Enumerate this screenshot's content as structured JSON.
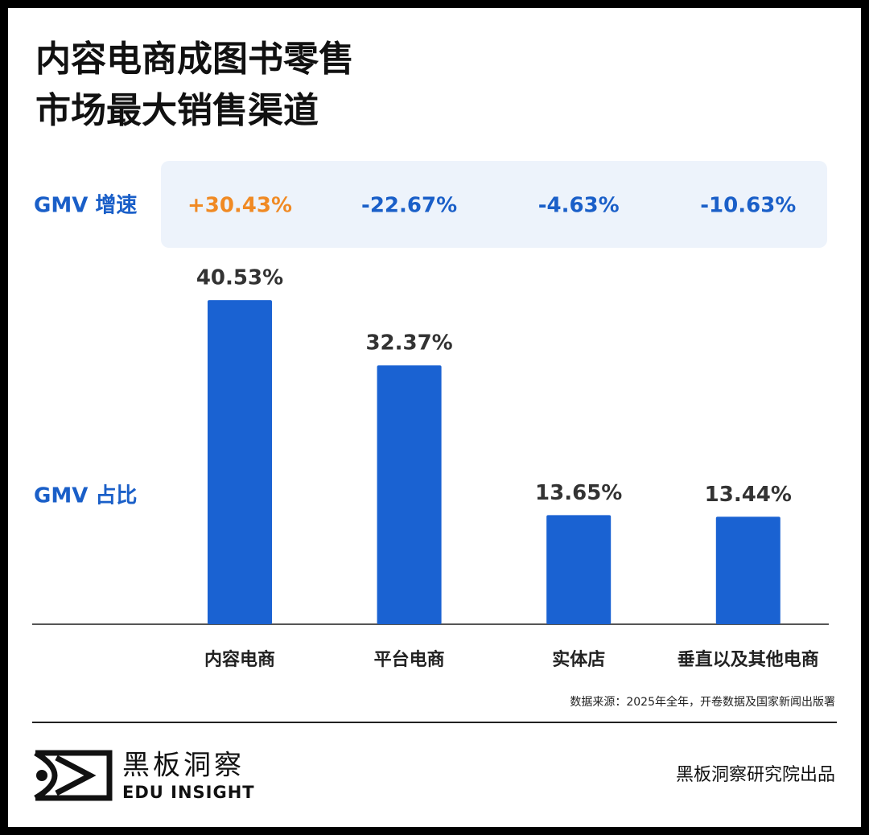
{
  "chart_data": {
    "type": "bar",
    "title": [
      "内容电商成图书零售",
      "市场最大销售渠道"
    ],
    "categories": [
      "内容电商",
      "平台电商",
      "实体店",
      "垂直以及其他电商"
    ],
    "series": [
      {
        "name": "GMV 占比",
        "color": "#1a62d2",
        "values": [
          40.53,
          32.37,
          13.65,
          13.44
        ],
        "value_labels": [
          "40.53%",
          "32.37%",
          "13.65%",
          "13.44%"
        ]
      },
      {
        "name": "GMV 增速",
        "color": "#1a5fc8",
        "positive_color": "#f08a24",
        "values": [
          30.43,
          -22.67,
          -4.63,
          -10.63
        ],
        "value_labels": [
          "+30.43%",
          "-22.67%",
          "-4.63%",
          "-10.63%"
        ]
      }
    ],
    "source": "数据来源：2025年全年，开卷数据及国家新闻出版署"
  },
  "brand": "黑板洞察",
  "brand_en": "EDU INSIGHT",
  "credit": "黑板洞察研究院出品"
}
